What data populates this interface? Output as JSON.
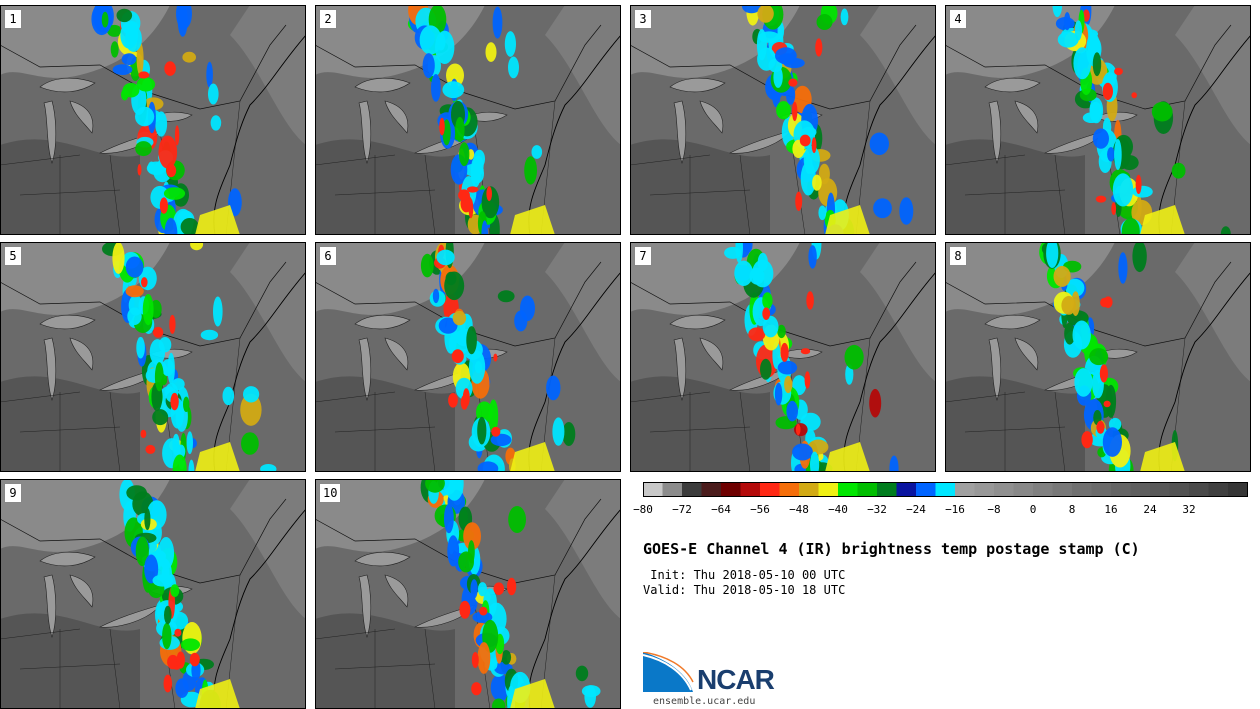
{
  "panels": [
    {
      "label": "1"
    },
    {
      "label": "2"
    },
    {
      "label": "3"
    },
    {
      "label": "4"
    },
    {
      "label": "5"
    },
    {
      "label": "6"
    },
    {
      "label": "7"
    },
    {
      "label": "8"
    },
    {
      "label": "9"
    },
    {
      "label": "10"
    }
  ],
  "colorbar": {
    "colors": [
      "#c8c8c8",
      "#8c8c8c",
      "#3c3c3c",
      "#4b1c1c",
      "#6e0000",
      "#b40a0a",
      "#ff2814",
      "#f56e0a",
      "#d2aa14",
      "#f0f014",
      "#00e600",
      "#00be00",
      "#007d1e",
      "#0a14a0",
      "#0064ff",
      "#00e6ff",
      "#a0a0a0",
      "#989898",
      "#909090",
      "#888888",
      "#808080",
      "#787878",
      "#707070",
      "#6a6a6a",
      "#646464",
      "#5e5e5e",
      "#585858",
      "#525252",
      "#4a4a4a",
      "#404040",
      "#363636"
    ],
    "tick_labels": [
      "−80",
      "−72",
      "−64",
      "−56",
      "−48",
      "−40",
      "−32",
      "−24",
      "−16",
      "−8",
      "0",
      "8",
      "16",
      "24",
      "32"
    ]
  },
  "title": "GOES-E Channel 4 (IR) brightness temp postage stamp (C)",
  "init": " Init: Thu 2018-05-10 00 UTC",
  "valid": "Valid: Thu 2018-05-10 18 UTC",
  "logo": {
    "text": "NCAR",
    "url": "ensemble.ucar.edu"
  }
}
